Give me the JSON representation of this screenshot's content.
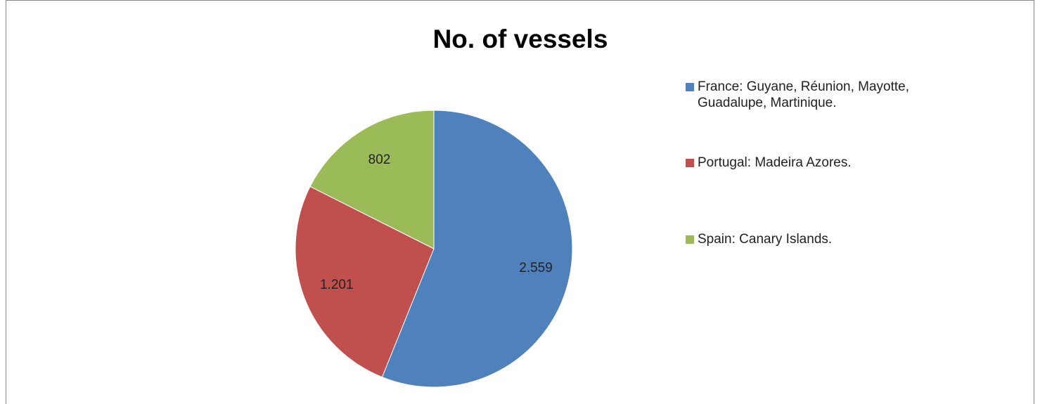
{
  "chart_data": {
    "type": "pie",
    "title": "No. of vessels",
    "categories": [
      "France: Guyane, Réunion, Mayotte, Guadalupe, Martinique.",
      "Portugal: Madeira Azores.",
      "Spain: Canary Islands."
    ],
    "values": [
      2559,
      1201,
      802
    ],
    "value_labels": [
      "2.559",
      "1.201",
      "802"
    ],
    "colors": [
      "#4f81bd",
      "#c0504d",
      "#9bbb59"
    ],
    "legend": "right"
  }
}
